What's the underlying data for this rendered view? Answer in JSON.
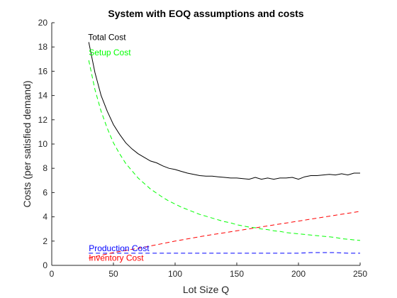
{
  "chart_data": {
    "type": "line",
    "title": "System with EOQ assumptions and costs",
    "xlabel": "Lot Size Q",
    "ylabel": "Costs (per satisfied demand)",
    "xlim": [
      0,
      250
    ],
    "ylim": [
      0,
      20
    ],
    "xticks": [
      0,
      50,
      100,
      150,
      200,
      250
    ],
    "yticks": [
      0,
      2,
      4,
      6,
      8,
      10,
      12,
      14,
      16,
      18,
      20
    ],
    "grid": false,
    "legend": "none",
    "series": [
      {
        "name": "Total Cost",
        "color": "#000000",
        "dash": "solid",
        "x": [
          30,
          35,
          40,
          45,
          50,
          55,
          60,
          65,
          70,
          75,
          80,
          85,
          90,
          95,
          100,
          105,
          110,
          115,
          120,
          125,
          130,
          135,
          140,
          145,
          150,
          155,
          160,
          165,
          170,
          175,
          180,
          185,
          190,
          195,
          200,
          205,
          210,
          215,
          220,
          225,
          230,
          235,
          240,
          245,
          250
        ],
        "values": [
          18.4,
          15.9,
          14.0,
          12.7,
          11.6,
          10.8,
          10.1,
          9.6,
          9.2,
          8.9,
          8.6,
          8.45,
          8.2,
          8.0,
          7.9,
          7.75,
          7.6,
          7.5,
          7.4,
          7.35,
          7.35,
          7.3,
          7.25,
          7.2,
          7.2,
          7.15,
          7.1,
          7.25,
          7.1,
          7.2,
          7.1,
          7.2,
          7.2,
          7.25,
          7.1,
          7.3,
          7.4,
          7.4,
          7.45,
          7.5,
          7.45,
          7.55,
          7.45,
          7.6,
          7.6
        ]
      },
      {
        "name": "Setup Cost",
        "color": "#00ff00",
        "dash": "dashed",
        "x": [
          30,
          35,
          40,
          45,
          50,
          55,
          60,
          65,
          70,
          75,
          80,
          85,
          90,
          95,
          100,
          105,
          110,
          115,
          120,
          125,
          130,
          135,
          140,
          145,
          150,
          155,
          160,
          165,
          170,
          175,
          180,
          185,
          190,
          195,
          200,
          205,
          210,
          215,
          220,
          225,
          230,
          235,
          240,
          245,
          250
        ],
        "values": [
          16.9,
          14.5,
          12.7,
          11.3,
          10.1,
          9.2,
          8.4,
          7.8,
          7.2,
          6.75,
          6.3,
          5.95,
          5.6,
          5.3,
          5.05,
          4.8,
          4.6,
          4.4,
          4.2,
          4.05,
          3.9,
          3.75,
          3.6,
          3.5,
          3.35,
          3.25,
          3.15,
          3.1,
          3.0,
          2.95,
          2.85,
          2.8,
          2.7,
          2.65,
          2.6,
          2.55,
          2.5,
          2.45,
          2.4,
          2.35,
          2.3,
          2.2,
          2.15,
          2.1,
          2.05
        ]
      },
      {
        "name": "Production Cost",
        "color": "#0000ff",
        "dash": "dashed",
        "x": [
          30,
          50,
          75,
          100,
          125,
          150,
          175,
          200,
          210,
          220,
          230,
          240,
          250
        ],
        "values": [
          1.0,
          1.0,
          1.0,
          1.0,
          1.0,
          1.0,
          1.0,
          1.0,
          1.05,
          1.05,
          1.05,
          1.0,
          1.0
        ]
      },
      {
        "name": "Inventory Cost",
        "color": "#ff0000",
        "dash": "dashed",
        "x": [
          30,
          50,
          75,
          100,
          125,
          150,
          175,
          200,
          225,
          250
        ],
        "values": [
          0.6,
          1.05,
          1.5,
          2.0,
          2.45,
          2.85,
          3.25,
          3.65,
          4.05,
          4.45
        ]
      }
    ],
    "annotations": [
      {
        "text": "Total Cost",
        "series": 0,
        "color": "#000000"
      },
      {
        "text": "Setup Cost",
        "series": 1,
        "color": "#00ff00"
      },
      {
        "text": "Production Cost",
        "series": 2,
        "color": "#0000ff"
      },
      {
        "text": "Inventory Cost",
        "series": 3,
        "color": "#ff0000"
      }
    ]
  }
}
